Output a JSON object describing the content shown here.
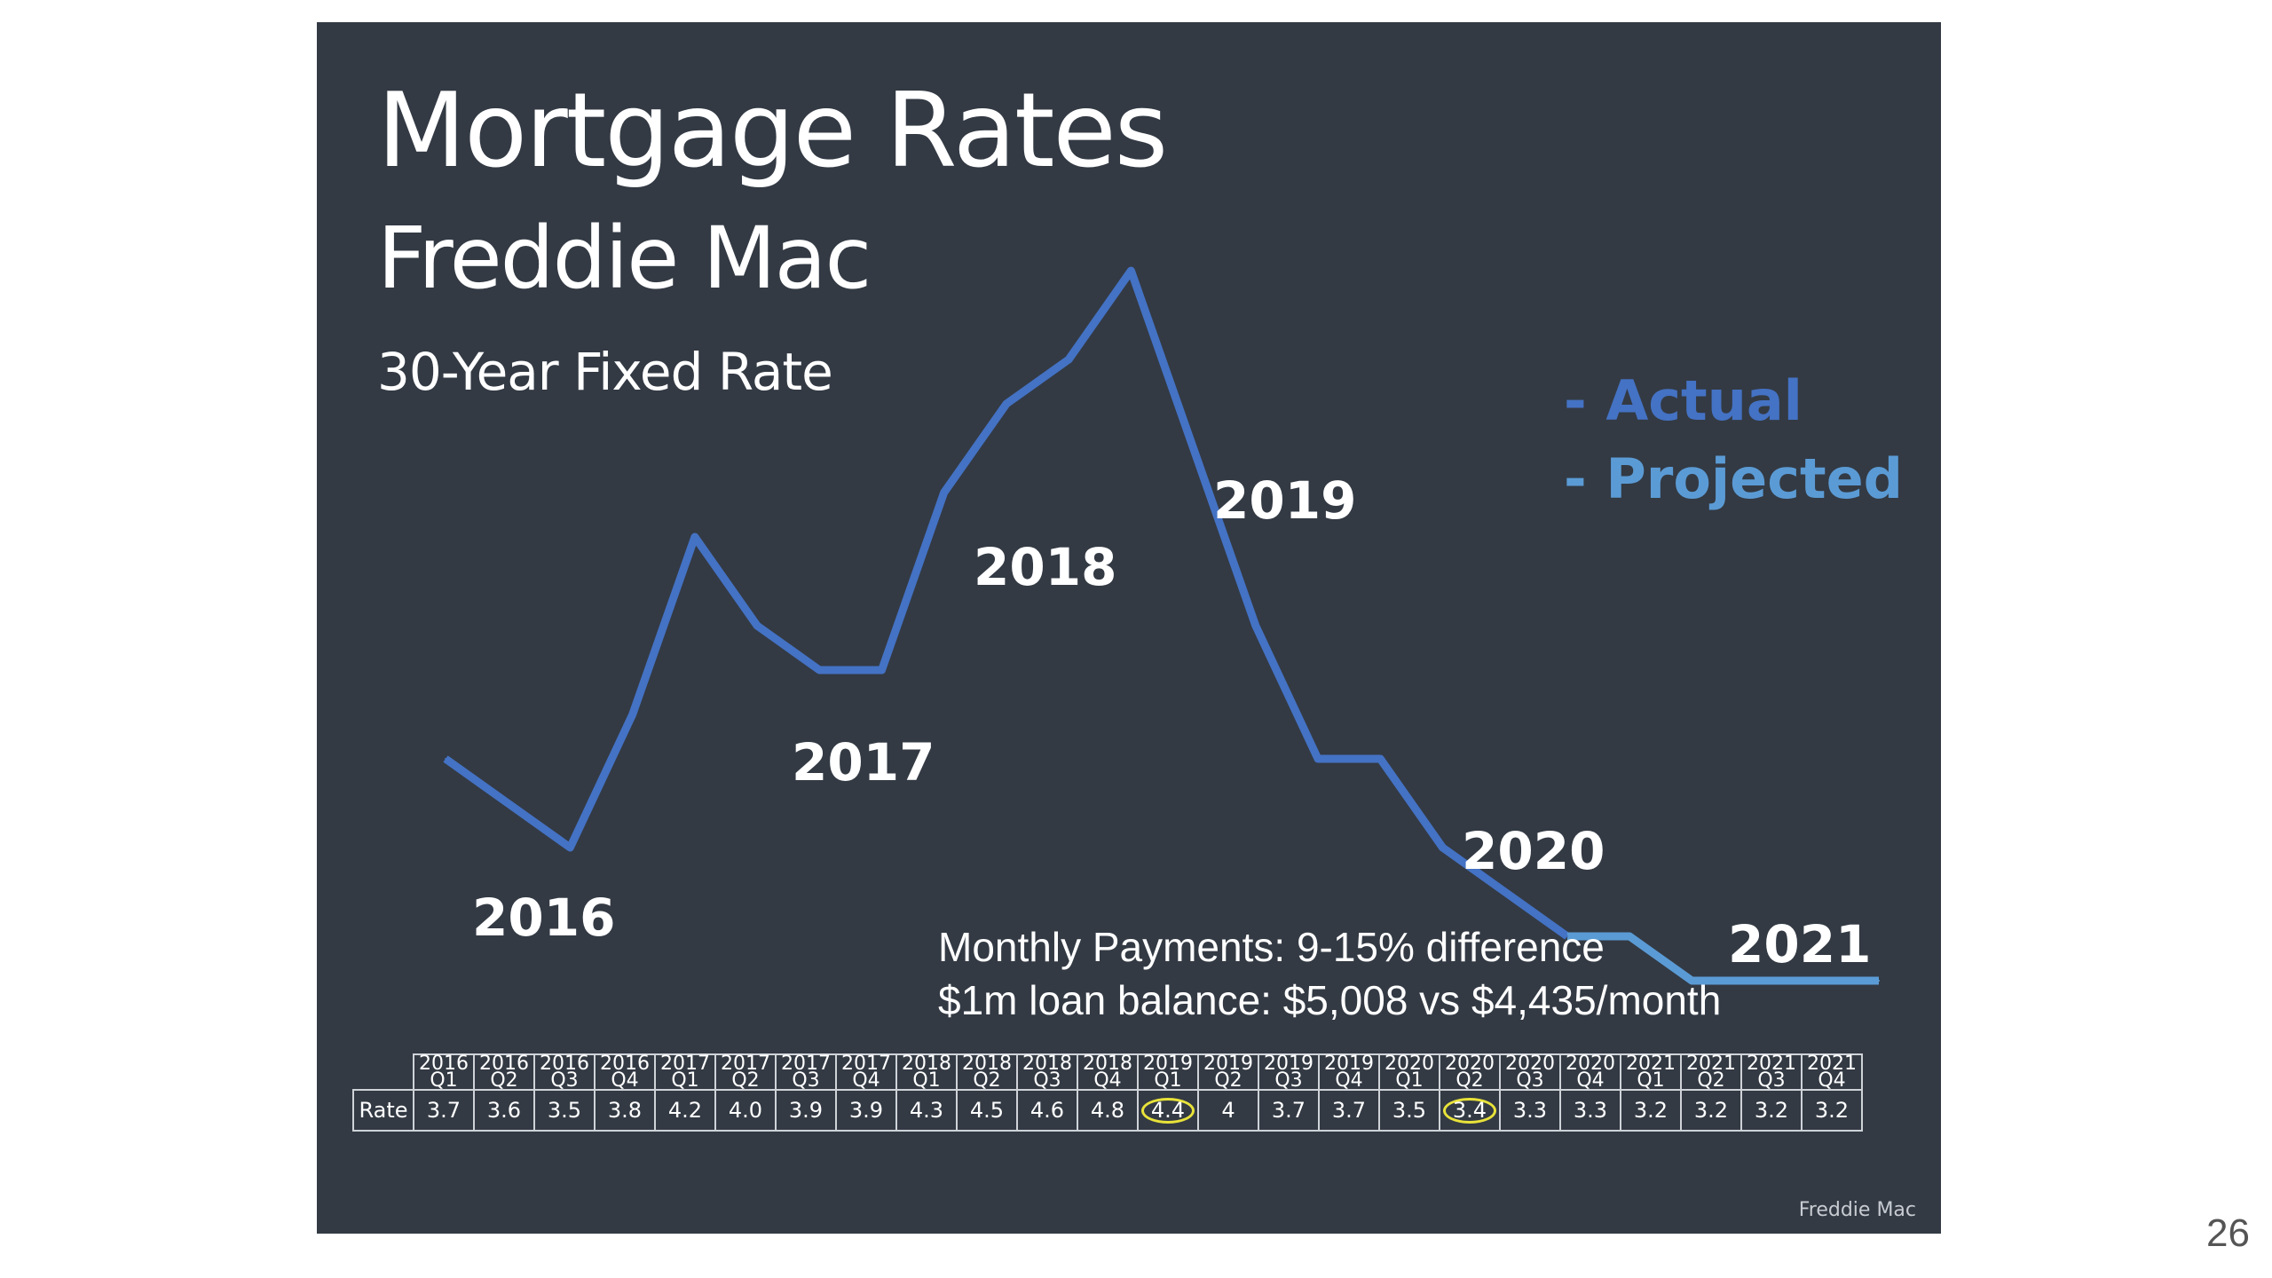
{
  "slide": {
    "title": "Mortgage Rates",
    "subtitle": "Freddie Mac",
    "subtitle2": "30-Year Fixed Rate",
    "legend_actual": "- Actual",
    "legend_projected": "- Projected",
    "year_labels": [
      "2016",
      "2017",
      "2018",
      "2019",
      "2020",
      "2021"
    ],
    "note_line1": "Monthly Payments: 9-15% difference",
    "note_line2": "$1m loan balance: $5,008 vs $4,435/month",
    "source": "Freddie Mac",
    "page_number": "26"
  },
  "colors": {
    "background": "#333a44",
    "actual": "#4472c4",
    "projected": "#5b9bd5",
    "highlight": "#e8e23a"
  },
  "table": {
    "row_label": "Rate",
    "circled": [
      "2019 Q1",
      "2020 Q2"
    ]
  },
  "chart_data": {
    "type": "line",
    "title": "Mortgage Rates",
    "subtitle": "Freddie Mac",
    "categories": [
      "2016 Q1",
      "2016 Q2",
      "2016 Q3",
      "2016 Q4",
      "2017 Q1",
      "2017 Q2",
      "2017 Q3",
      "2017 Q4",
      "2018 Q1",
      "2018 Q2",
      "2018 Q3",
      "2018 Q4",
      "2019 Q1",
      "2019 Q2",
      "2019 Q3",
      "2019 Q4",
      "2020 Q1",
      "2020 Q2",
      "2020 Q3",
      "2020 Q4",
      "2021 Q1",
      "2021 Q2",
      "2021 Q3",
      "2021 Q4"
    ],
    "table_years": [
      "2016",
      "2016",
      "2016",
      "2016",
      "2017",
      "2017",
      "2017",
      "2017",
      "2018",
      "2018",
      "2018",
      "2018",
      "2019",
      "2019",
      "2019",
      "2019",
      "2020",
      "2020",
      "2020",
      "2020",
      "2021",
      "2021",
      "2021",
      "2021"
    ],
    "table_quarters": [
      "Q1",
      "Q2",
      "Q3",
      "Q4",
      "Q1",
      "Q2",
      "Q3",
      "Q4",
      "Q1",
      "Q2",
      "Q3",
      "Q4",
      "Q1",
      "Q2",
      "Q3",
      "Q4",
      "Q1",
      "Q2",
      "Q3",
      "Q4",
      "Q1",
      "Q2",
      "Q3",
      "Q4"
    ],
    "values": [
      "3.7",
      "3.6",
      "3.5",
      "3.8",
      "4.2",
      "4.0",
      "3.9",
      "3.9",
      "4.3",
      "4.5",
      "4.6",
      "4.8",
      "4.4",
      "4",
      "3.7",
      "3.7",
      "3.5",
      "3.4",
      "3.3",
      "3.3",
      "3.2",
      "3.2",
      "3.2",
      "3.2"
    ],
    "series": [
      {
        "name": "Actual",
        "start_index": 0,
        "end_index": 18
      },
      {
        "name": "Projected",
        "start_index": 18,
        "end_index": 23
      }
    ],
    "ylim": [
      3.0,
      5.0
    ],
    "grid": false,
    "legend": "top-right"
  }
}
